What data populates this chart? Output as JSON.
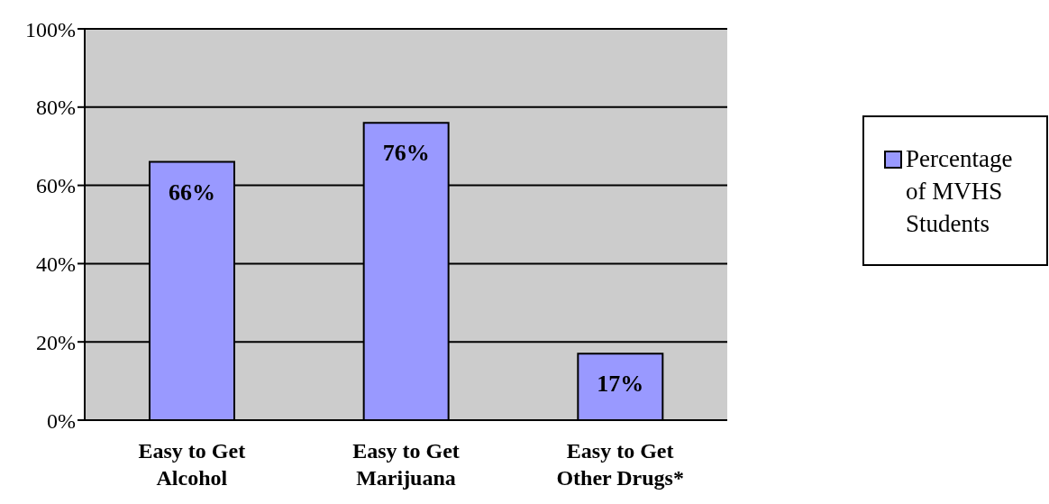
{
  "chart_data": {
    "type": "bar",
    "categories": [
      "Easy to Get Alcohol",
      "Easy to Get Marijuana",
      "Easy to Get Other Drugs*"
    ],
    "series": [
      {
        "name": "Percentage of MVHS Students",
        "color": "#9999ff",
        "values": [
          66,
          76,
          17
        ],
        "value_labels": [
          "66%",
          "76%",
          "17%"
        ]
      }
    ],
    "ylim": [
      0,
      100
    ],
    "yticks": [
      {
        "value": 0,
        "label": "0%"
      },
      {
        "value": 20,
        "label": "20%"
      },
      {
        "value": 40,
        "label": "40%"
      },
      {
        "value": 60,
        "label": "60%"
      },
      {
        "value": 80,
        "label": "80%"
      },
      {
        "value": 100,
        "label": "100%"
      }
    ],
    "grid": "y",
    "legend": "right"
  }
}
